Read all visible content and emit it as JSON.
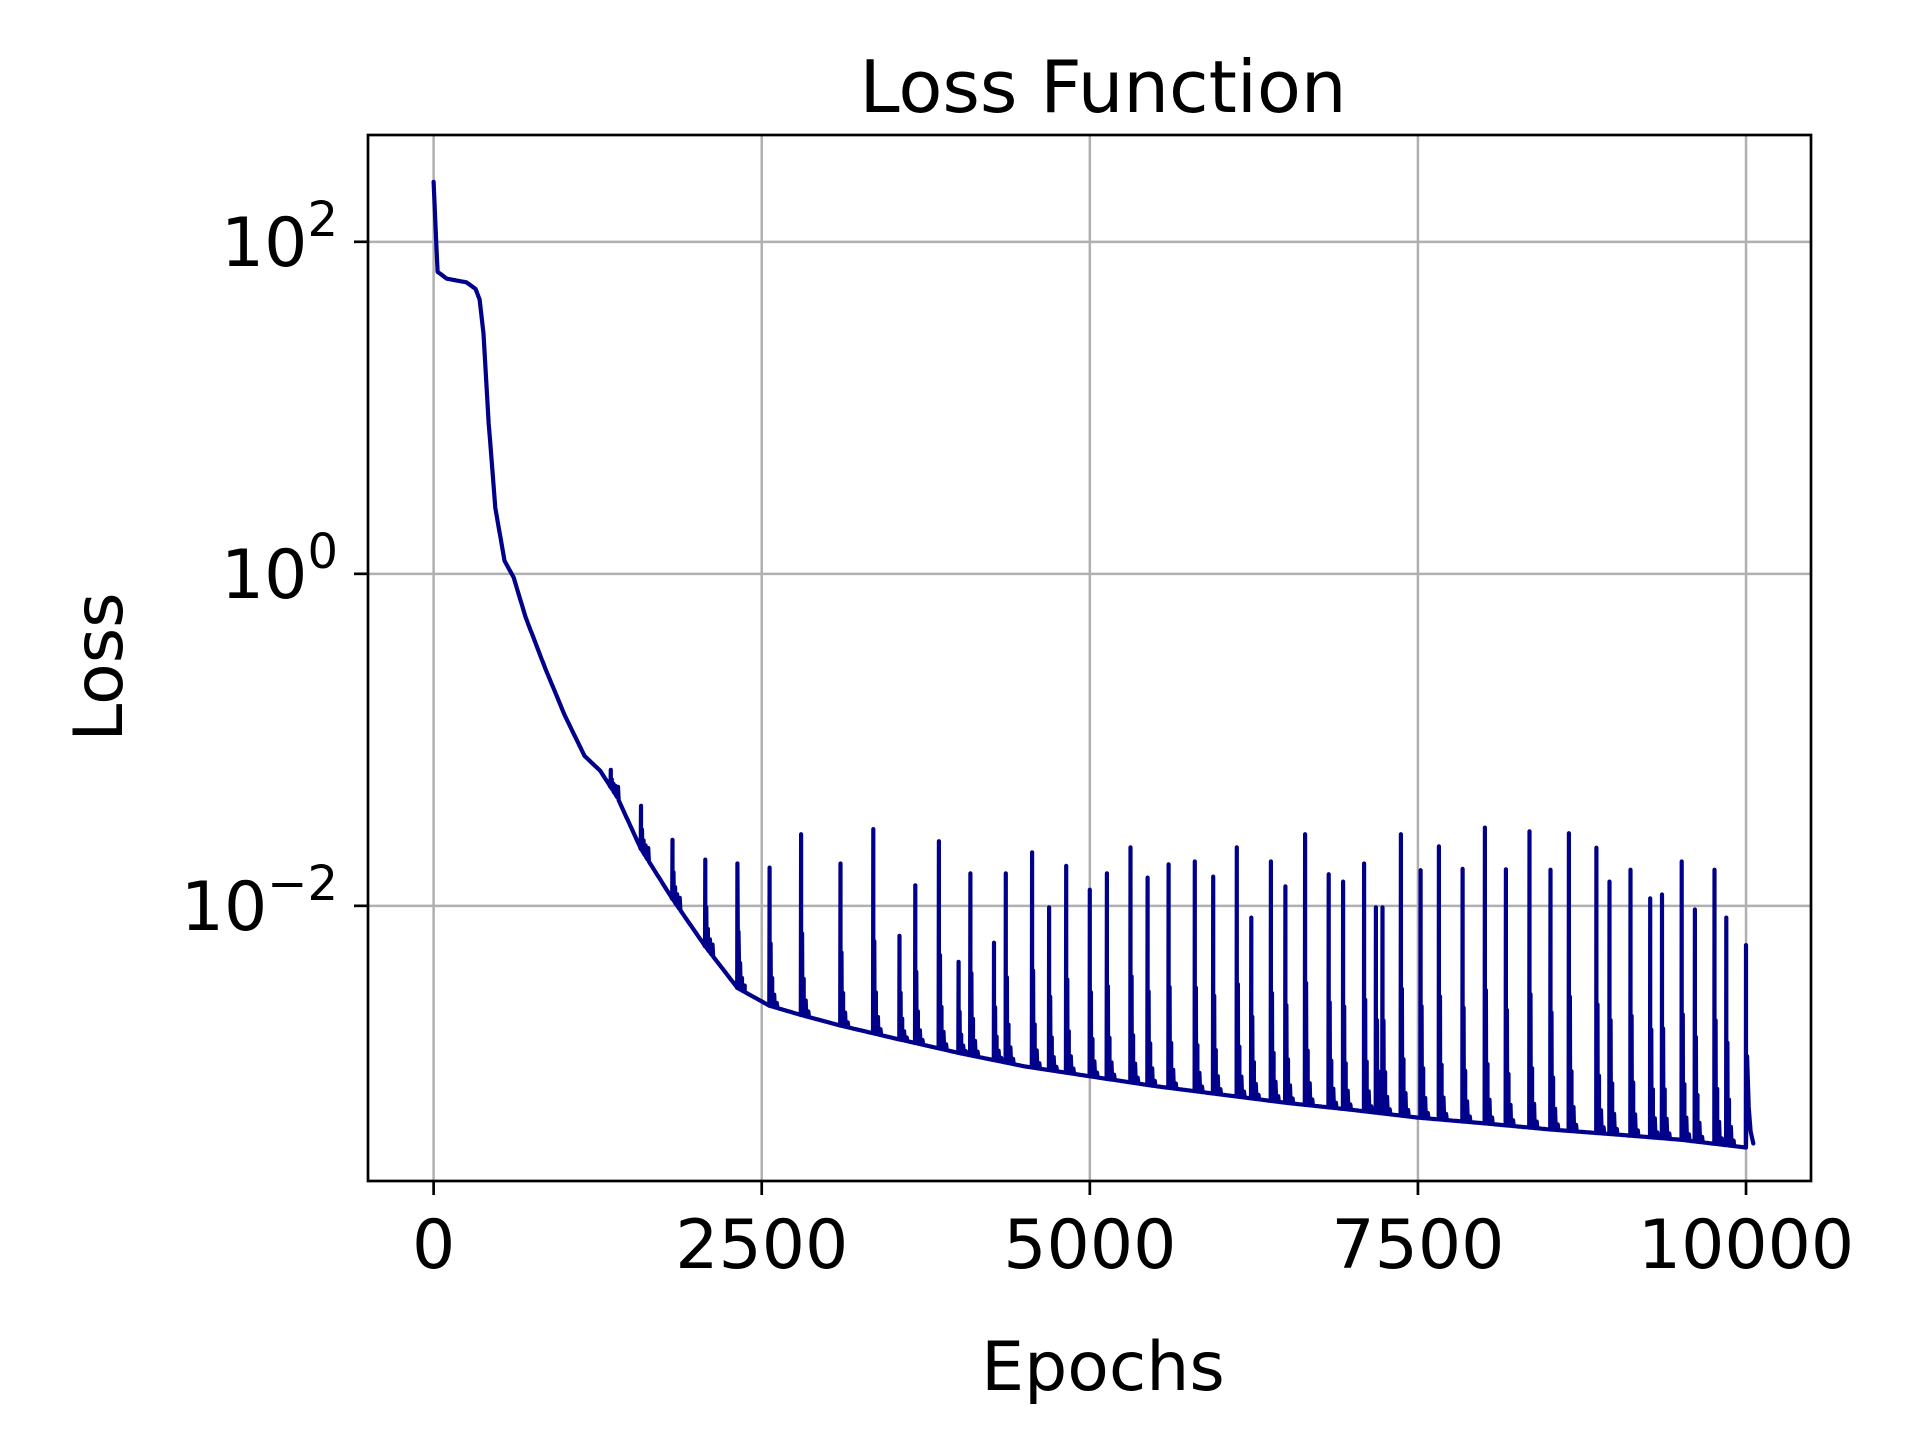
{
  "chart_data": {
    "type": "line",
    "title": "Loss Function",
    "xlabel": "Epochs",
    "ylabel": "Loss",
    "yscale": "log",
    "xlim": [
      -500,
      10495
    ],
    "ylim": [
      0.00022,
      440
    ],
    "grid": true,
    "legend": null,
    "line_color": "#00008b",
    "xticks": [
      0,
      2500,
      5000,
      7500,
      10000
    ],
    "xtick_labels": [
      "0",
      "2500",
      "5000",
      "7500",
      "10000"
    ],
    "yticks": [
      100,
      1,
      0.01
    ],
    "ytick_labels": [
      {
        "base": "10",
        "exp": "2"
      },
      {
        "base": "10",
        "exp": "0"
      },
      {
        "base": "10",
        "exp": "−2"
      }
    ],
    "series": [
      {
        "name": "Loss",
        "baseline": [
          [
            0,
            230
          ],
          [
            30,
            66
          ],
          [
            100,
            60
          ],
          [
            250,
            57
          ],
          [
            320,
            52
          ],
          [
            350,
            45
          ],
          [
            380,
            28
          ],
          [
            420,
            8
          ],
          [
            470,
            2.5
          ],
          [
            540,
            1.2
          ],
          [
            610,
            0.95
          ],
          [
            700,
            0.55
          ],
          [
            850,
            0.27
          ],
          [
            1000,
            0.14
          ],
          [
            1150,
            0.08
          ],
          [
            1270,
            0.065
          ],
          [
            1400,
            0.045
          ],
          [
            1580,
            0.022
          ],
          [
            1820,
            0.011
          ],
          [
            2070,
            0.0057
          ],
          [
            2315,
            0.0032
          ],
          [
            2560,
            0.0025
          ],
          [
            2800,
            0.0022
          ],
          [
            3100,
            0.0019
          ],
          [
            3500,
            0.0016
          ],
          [
            4000,
            0.0013
          ],
          [
            4500,
            0.00108
          ],
          [
            5000,
            0.00094
          ],
          [
            5500,
            0.00082
          ],
          [
            6000,
            0.00073
          ],
          [
            6500,
            0.00065
          ],
          [
            7000,
            0.00059
          ],
          [
            7500,
            0.00053
          ],
          [
            8000,
            0.00049
          ],
          [
            8500,
            0.00045
          ],
          [
            9000,
            0.00042
          ],
          [
            9500,
            0.00039
          ],
          [
            10000,
            0.00035
          ]
        ],
        "spikes": [
          [
            1350,
            0.066
          ],
          [
            1580,
            0.04
          ],
          [
            1820,
            0.025
          ],
          [
            2070,
            0.019
          ],
          [
            2315,
            0.018
          ],
          [
            2560,
            0.017
          ],
          [
            2800,
            0.027
          ],
          [
            3100,
            0.018
          ],
          [
            3350,
            0.029
          ],
          [
            3550,
            0.0066
          ],
          [
            3670,
            0.0133
          ],
          [
            3850,
            0.0245
          ],
          [
            4000,
            0.0046
          ],
          [
            4090,
            0.0157
          ],
          [
            4270,
            0.006
          ],
          [
            4360,
            0.0157
          ],
          [
            4560,
            0.021
          ],
          [
            4690,
            0.0098
          ],
          [
            4820,
            0.0174
          ],
          [
            5000,
            0.0125
          ],
          [
            5130,
            0.0157
          ],
          [
            5310,
            0.0225
          ],
          [
            5440,
            0.0148
          ],
          [
            5600,
            0.0178
          ],
          [
            5800,
            0.0185
          ],
          [
            5940,
            0.015
          ],
          [
            6120,
            0.0225
          ],
          [
            6230,
            0.0085
          ],
          [
            6380,
            0.0185
          ],
          [
            6490,
            0.0131
          ],
          [
            6640,
            0.027
          ],
          [
            6820,
            0.0155
          ],
          [
            6930,
            0.014
          ],
          [
            7090,
            0.018
          ],
          [
            7180,
            0.0098
          ],
          [
            7230,
            0.0098
          ],
          [
            7370,
            0.027
          ],
          [
            7520,
            0.0164
          ],
          [
            7660,
            0.0228
          ],
          [
            7840,
            0.0167
          ],
          [
            8010,
            0.0296
          ],
          [
            8170,
            0.0166
          ],
          [
            8350,
            0.0281
          ],
          [
            8510,
            0.0165
          ],
          [
            8650,
            0.0274
          ],
          [
            8860,
            0.0224
          ],
          [
            8960,
            0.014
          ],
          [
            9120,
            0.0165
          ],
          [
            9270,
            0.0111
          ],
          [
            9360,
            0.0117
          ],
          [
            9510,
            0.0185
          ],
          [
            9610,
            0.0095
          ],
          [
            9760,
            0.0165
          ],
          [
            9850,
            0.0085
          ],
          [
            10000,
            0.0058
          ]
        ]
      }
    ]
  }
}
